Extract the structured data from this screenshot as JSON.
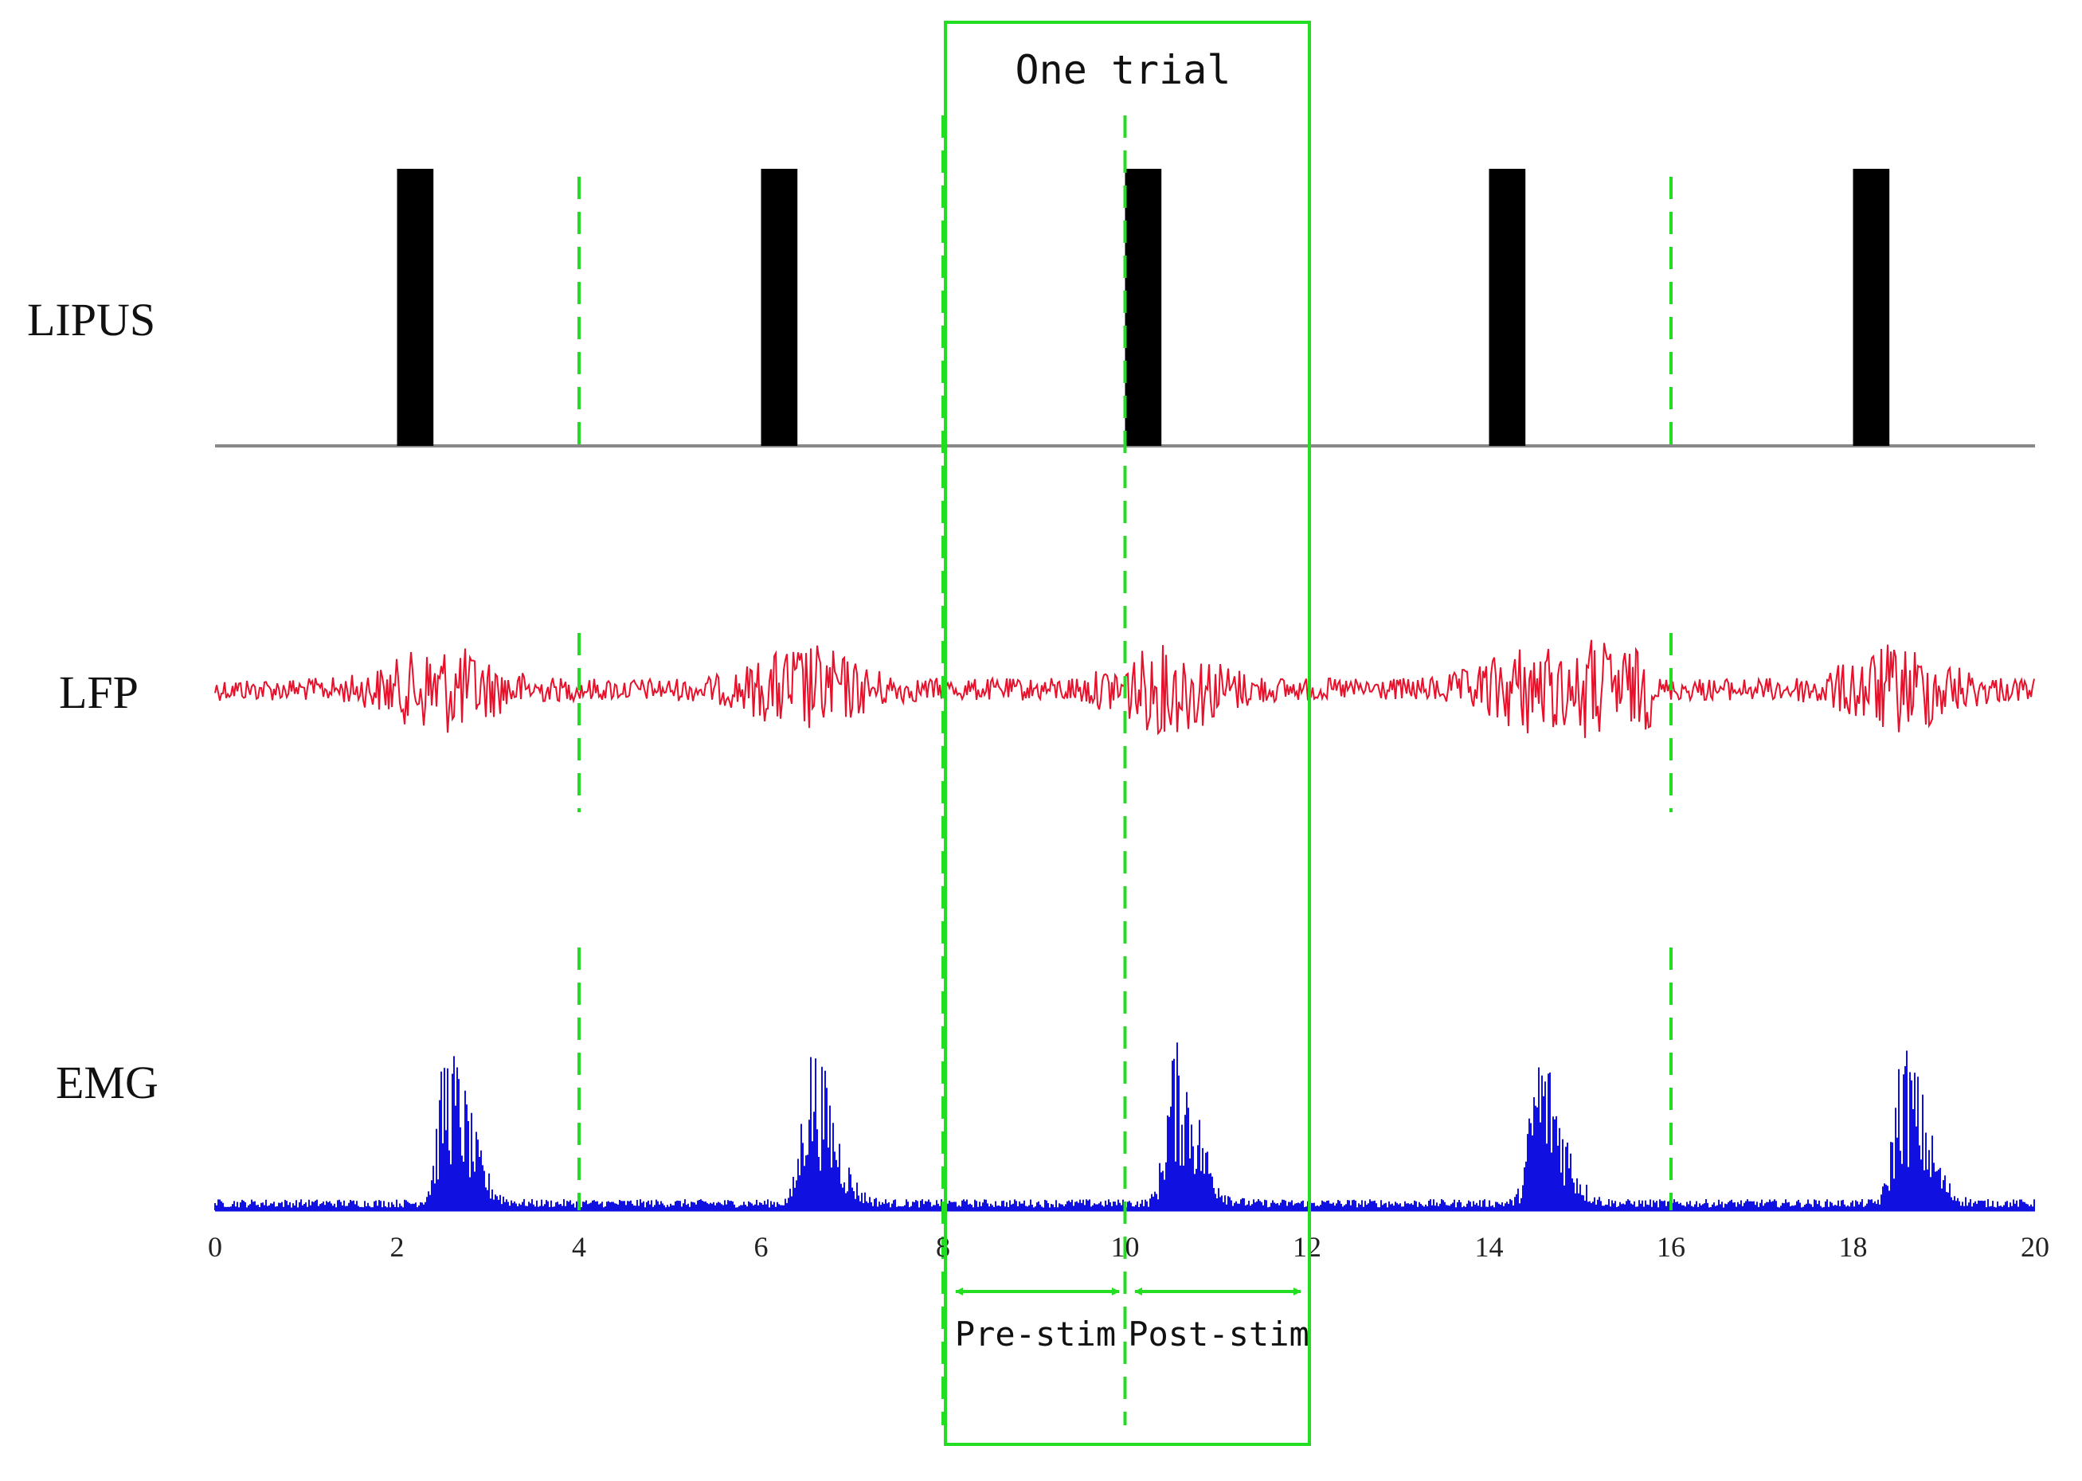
{
  "labels": {
    "lipus": "LIPUS",
    "lfp": "LFP",
    "emg": "EMG",
    "trial": "One trial",
    "pre": "Pre-stim",
    "post": "Post-stim"
  },
  "axis": {
    "min": 0,
    "max": 20,
    "ticks": [
      "0",
      "2",
      "4",
      "6",
      "8",
      "10",
      "12",
      "14",
      "16",
      "18",
      "20"
    ]
  },
  "chart_data": {
    "type": "line",
    "x_range": [
      0,
      20
    ],
    "stimulus_onsets": [
      2,
      6,
      10,
      14,
      18
    ],
    "stimulus_duration": 0.4,
    "trial_markers": [
      4,
      8,
      10,
      16
    ],
    "trial_window": [
      8,
      12
    ],
    "pre_stim_window": [
      8,
      10
    ],
    "post_stim_window": [
      10,
      12
    ],
    "series": [
      {
        "name": "LIPUS"
      },
      {
        "name": "LFP"
      },
      {
        "name": "EMG"
      }
    ]
  },
  "colors": {
    "lipus": "#000000",
    "lfp": "#e8102a",
    "emg": "#1010e0",
    "marker": "#22dd22",
    "baseline": "#888888"
  }
}
